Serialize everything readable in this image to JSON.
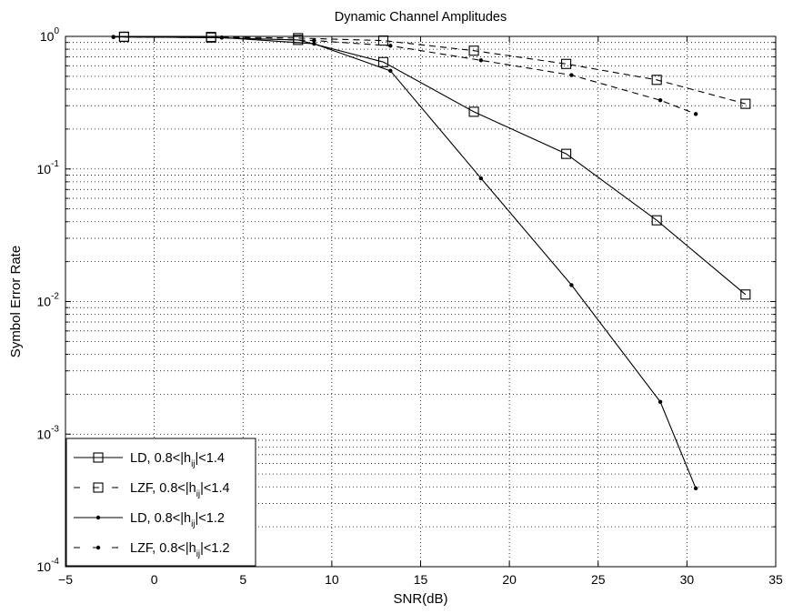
{
  "chart_data": {
    "type": "line",
    "title": "Dynamic Channel Amplitudes",
    "xlabel": "SNR(dB)",
    "ylabel": "Symbol Error Rate",
    "xlim": [
      -5,
      35
    ],
    "ylim": [
      0.0001,
      1
    ],
    "yscale": "log",
    "grid": true,
    "legend_position": "bottom-left",
    "x_ticks": [
      -5,
      0,
      5,
      10,
      15,
      20,
      25,
      30,
      35
    ],
    "x_tick_labels": [
      "−5",
      "0",
      "5",
      "10",
      "15",
      "20",
      "25",
      "30",
      "35"
    ],
    "y_ticks": [
      {
        "value": 1,
        "base": "10",
        "exp": "0"
      },
      {
        "value": 0.1,
        "base": "10",
        "exp": "-1"
      },
      {
        "value": 0.01,
        "base": "10",
        "exp": "-2"
      },
      {
        "value": 0.001,
        "base": "10",
        "exp": "-3"
      },
      {
        "value": 0.0001,
        "base": "10",
        "exp": "-4"
      }
    ],
    "series": [
      {
        "legend": {
          "pre": "LD, 0.8<|h",
          "sub": "ij",
          "post": "|<1.4"
        },
        "line": "solid",
        "marker": "square",
        "x": [
          -1.7,
          3.2,
          8.1,
          12.9,
          18.0,
          23.2,
          28.3,
          33.3
        ],
        "y": [
          0.99,
          0.98,
          0.94,
          0.64,
          0.27,
          0.13,
          0.041,
          0.0113
        ]
      },
      {
        "legend": {
          "pre": "LZF, 0.8<|h",
          "sub": "ij",
          "post": "|<1.4"
        },
        "line": "dashed",
        "marker": "square",
        "x": [
          -1.7,
          3.2,
          8.1,
          12.9,
          18.0,
          23.2,
          28.3,
          33.3
        ],
        "y": [
          0.995,
          0.99,
          0.97,
          0.93,
          0.78,
          0.62,
          0.47,
          0.31
        ]
      },
      {
        "legend": {
          "pre": "LD, 0.8<|h",
          "sub": "ij",
          "post": "|<1.2"
        },
        "line": "solid",
        "marker": "dot",
        "x": [
          -2.3,
          3.8,
          9.0,
          13.3,
          18.4,
          23.5,
          28.5,
          30.5
        ],
        "y": [
          0.99,
          0.98,
          0.88,
          0.55,
          0.085,
          0.0133,
          0.00175,
          0.00039
        ]
      },
      {
        "legend": {
          "pre": "LZF, 0.8<|h",
          "sub": "ij",
          "post": "|<1.2"
        },
        "line": "dashed",
        "marker": "dot",
        "x": [
          -2.3,
          3.8,
          9.0,
          13.3,
          18.4,
          23.5,
          28.5,
          30.5
        ],
        "y": [
          0.99,
          0.98,
          0.93,
          0.85,
          0.66,
          0.51,
          0.33,
          0.26
        ]
      }
    ]
  }
}
